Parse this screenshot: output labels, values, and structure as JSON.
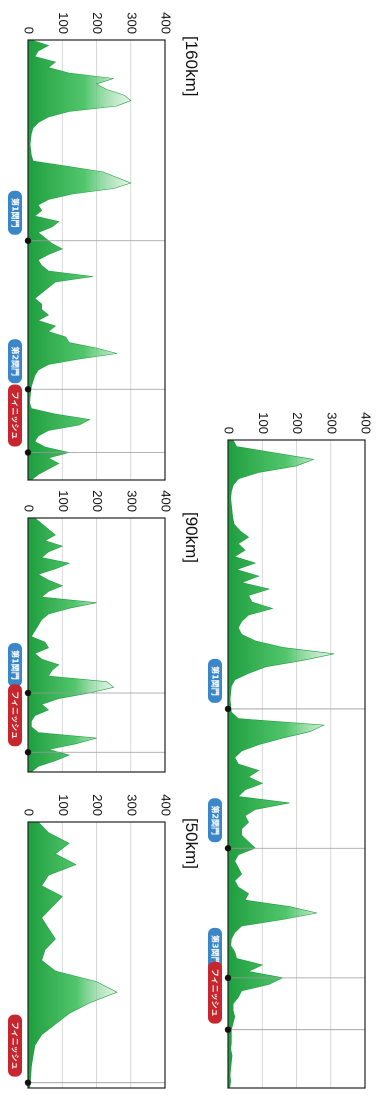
{
  "chart_data": [
    {
      "id": "c200",
      "type": "area",
      "title": "",
      "orientation": "rotated-90-clockwise",
      "ylim": [
        0,
        400
      ],
      "yticks": [
        0,
        100,
        200,
        300,
        400
      ],
      "grid": true,
      "color": "#2bb24c",
      "xlim": [
        0,
        200
      ],
      "x": [
        0,
        2,
        4,
        6,
        8,
        10,
        12,
        14,
        16,
        18,
        20,
        22,
        24,
        26,
        28,
        30,
        32,
        34,
        36,
        38,
        40,
        42,
        44,
        46,
        48,
        50,
        52,
        54,
        56,
        58,
        60,
        62,
        64,
        66,
        68,
        70,
        72,
        74,
        76,
        78,
        80,
        82,
        84,
        86,
        88,
        90,
        92,
        94,
        96,
        98,
        100,
        102,
        104,
        106,
        108,
        110,
        112,
        114,
        116,
        118,
        120,
        122,
        124,
        126,
        128,
        130,
        132,
        134,
        136,
        138,
        140,
        142,
        144,
        146,
        148,
        150,
        152,
        154,
        156,
        158,
        160,
        162,
        164,
        166,
        168,
        170,
        172,
        174,
        176,
        178,
        180,
        182,
        184,
        186,
        188,
        190,
        192,
        194,
        196,
        198,
        200
      ],
      "y": [
        15,
        25,
        140,
        250,
        200,
        90,
        30,
        15,
        10,
        8,
        10,
        12,
        14,
        18,
        35,
        60,
        30,
        50,
        20,
        80,
        25,
        90,
        40,
        120,
        60,
        70,
        130,
        60,
        40,
        30,
        40,
        80,
        160,
        310,
        220,
        110,
        60,
        20,
        10,
        8,
        6,
        8,
        10,
        30,
        280,
        240,
        160,
        90,
        40,
        20,
        30,
        90,
        60,
        100,
        50,
        30,
        180,
        80,
        50,
        60,
        40,
        40,
        60,
        80,
        30,
        20,
        30,
        40,
        20,
        30,
        60,
        50,
        180,
        260,
        160,
        40,
        20,
        10,
        8,
        20,
        25,
        100,
        60,
        160,
        120,
        40,
        30,
        15,
        15,
        20,
        15,
        10,
        10,
        10,
        8,
        12,
        10,
        8,
        6,
        8,
        5
      ],
      "markers": [
        {
          "x": 83,
          "label": "第1関門",
          "color": "#3a86c8"
        },
        {
          "x": 126,
          "label": "第2関門",
          "color": "#3a86c8"
        },
        {
          "x": 166,
          "label": "第3関門",
          "color": "#3a86c8"
        },
        {
          "x": 182,
          "label": "フィニッシュ",
          "color": "#c8262e"
        }
      ]
    },
    {
      "id": "c160",
      "type": "area",
      "title": "[160km]",
      "orientation": "rotated-90-clockwise",
      "ylim": [
        0,
        400
      ],
      "yticks": [
        0,
        100,
        200,
        300,
        400
      ],
      "grid": true,
      "color": "#2bb24c",
      "xlim": [
        0,
        160
      ],
      "x": [
        0,
        2,
        4,
        6,
        8,
        10,
        12,
        14,
        16,
        18,
        20,
        22,
        24,
        26,
        28,
        30,
        32,
        34,
        36,
        38,
        40,
        42,
        44,
        46,
        48,
        50,
        52,
        54,
        56,
        58,
        60,
        62,
        64,
        66,
        68,
        70,
        72,
        74,
        76,
        78,
        80,
        82,
        84,
        86,
        88,
        90,
        92,
        94,
        96,
        98,
        100,
        102,
        104,
        106,
        108,
        110,
        112,
        114,
        116,
        118,
        120,
        122,
        124,
        126,
        128,
        130,
        132,
        134,
        136,
        138,
        140,
        142,
        144,
        146,
        148,
        150,
        152,
        154,
        156,
        158,
        160
      ],
      "y": [
        10,
        60,
        30,
        20,
        80,
        60,
        120,
        250,
        200,
        230,
        280,
        300,
        260,
        120,
        60,
        30,
        15,
        10,
        8,
        6,
        8,
        10,
        15,
        120,
        220,
        260,
        300,
        250,
        130,
        60,
        30,
        40,
        20,
        90,
        70,
        30,
        50,
        70,
        100,
        60,
        30,
        40,
        60,
        190,
        80,
        60,
        40,
        20,
        40,
        40,
        60,
        30,
        80,
        60,
        110,
        120,
        200,
        260,
        150,
        60,
        30,
        20,
        15,
        10,
        8,
        6,
        5,
        10,
        80,
        180,
        150,
        60,
        30,
        20,
        50,
        120,
        60,
        90,
        60,
        30,
        10
      ],
      "markers": [
        {
          "x": 73,
          "label": "第1関門",
          "color": "#3a86c8"
        },
        {
          "x": 127,
          "label": "第2関門",
          "color": "#3a86c8"
        },
        {
          "x": 150,
          "label": "フィニッシュ",
          "color": "#c8262e"
        }
      ]
    },
    {
      "id": "c90",
      "type": "area",
      "title": "[90km]",
      "orientation": "rotated-90-clockwise",
      "ylim": [
        0,
        400
      ],
      "yticks": [
        0,
        100,
        200,
        300,
        400
      ],
      "grid": true,
      "color": "#2bb24c",
      "xlim": [
        0,
        90
      ],
      "x": [
        0,
        2,
        4,
        6,
        8,
        10,
        12,
        14,
        16,
        18,
        20,
        22,
        24,
        26,
        28,
        30,
        32,
        34,
        36,
        38,
        40,
        42,
        44,
        46,
        48,
        50,
        52,
        54,
        56,
        58,
        60,
        62,
        64,
        66,
        68,
        70,
        72,
        74,
        76,
        78,
        80,
        82,
        84,
        86,
        88,
        90
      ],
      "y": [
        20,
        40,
        60,
        80,
        50,
        100,
        60,
        40,
        120,
        80,
        30,
        60,
        100,
        60,
        40,
        200,
        120,
        60,
        40,
        30,
        20,
        10,
        50,
        60,
        20,
        40,
        90,
        70,
        60,
        230,
        250,
        180,
        90,
        40,
        60,
        20,
        10,
        10,
        30,
        200,
        140,
        60,
        120,
        80,
        30,
        10
      ],
      "markers": [
        {
          "x": 62,
          "label": "第1関門",
          "color": "#3a86c8"
        },
        {
          "x": 83,
          "label": "フィニッシュ",
          "color": "#c8262e"
        }
      ]
    },
    {
      "id": "c50",
      "type": "area",
      "title": "[50km]",
      "orientation": "rotated-90-clockwise",
      "ylim": [
        0,
        400
      ],
      "yticks": [
        0,
        100,
        200,
        300,
        400
      ],
      "grid": true,
      "color": "#2bb24c",
      "xlim": [
        0,
        50
      ],
      "x": [
        0,
        2,
        4,
        6,
        8,
        10,
        12,
        14,
        16,
        18,
        20,
        22,
        24,
        26,
        28,
        30,
        32,
        34,
        36,
        38,
        40,
        42,
        44,
        46,
        48,
        50
      ],
      "y": [
        30,
        60,
        120,
        80,
        140,
        60,
        40,
        100,
        70,
        40,
        60,
        80,
        50,
        40,
        80,
        200,
        260,
        180,
        120,
        80,
        40,
        20,
        15,
        10,
        8,
        5
      ],
      "markers": [
        {
          "x": 49,
          "label": "フィニッシュ",
          "color": "#c8262e"
        }
      ]
    }
  ]
}
